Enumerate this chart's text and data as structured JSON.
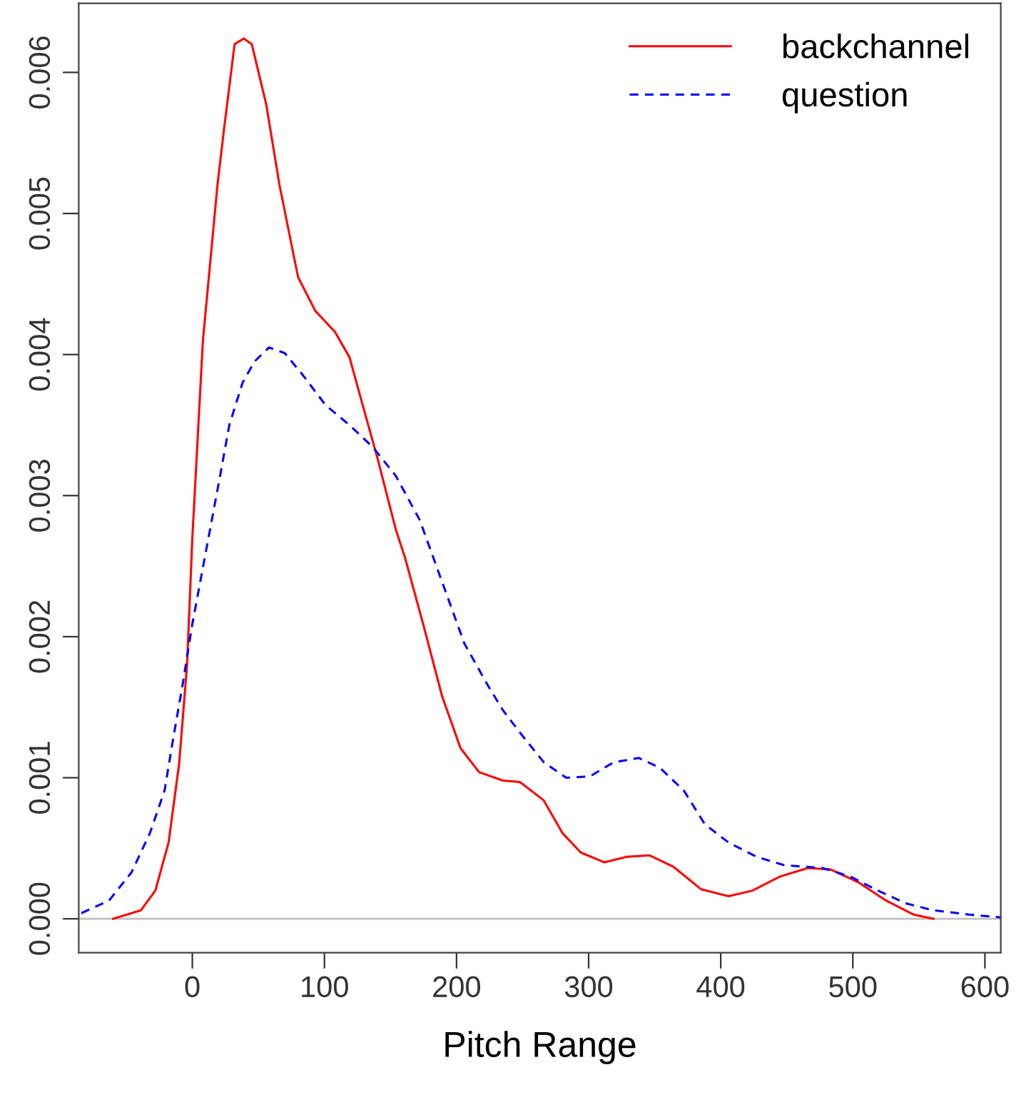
{
  "chart_data": {
    "type": "line",
    "xlabel": "Pitch Range",
    "xlim": [
      -86,
      612
    ],
    "ylim": [
      -0.00024,
      0.00649
    ],
    "xticks": [
      0,
      100,
      200,
      300,
      400,
      500,
      600
    ],
    "yticks": [
      {
        "value": 0,
        "label": "0.000"
      },
      {
        "value": 0.001,
        "label": "0.001"
      },
      {
        "value": 0.002,
        "label": "0.002"
      },
      {
        "value": 0.003,
        "label": "0.003"
      },
      {
        "value": 0.004,
        "label": "0.004"
      },
      {
        "value": 0.005,
        "label": "0.005"
      },
      {
        "value": 0.006,
        "label": "0.006"
      }
    ],
    "grid": false,
    "legend": "top right",
    "ref_lines": [
      {
        "axis": "y",
        "value": 0,
        "color": "#c0c0c0"
      }
    ],
    "series": [
      {
        "name": "backchannel",
        "color": "#ff0000",
        "line_style": "solid",
        "x": [
          -60,
          -39,
          -28,
          -18,
          -10,
          -4,
          0,
          8,
          14,
          19,
          24,
          32,
          39,
          45,
          56,
          66,
          80,
          93,
          108,
          119,
          129,
          140,
          154,
          161,
          175,
          189,
          203,
          217,
          235,
          248,
          266,
          280,
          294,
          312,
          329,
          346,
          364,
          385,
          406,
          424,
          445,
          466,
          483,
          504,
          525,
          546,
          561
        ],
        "values": [
          0,
          6e-05,
          0.0002,
          0.00054,
          0.0011,
          0.0018,
          0.0027,
          0.0041,
          0.0047,
          0.0052,
          0.0056,
          0.0062,
          0.00624,
          0.0062,
          0.00577,
          0.0052,
          0.00455,
          0.00431,
          0.00416,
          0.00398,
          0.00364,
          0.00327,
          0.00276,
          0.00256,
          0.00208,
          0.00158,
          0.00121,
          0.00104,
          0.00098,
          0.00097,
          0.00084,
          0.00061,
          0.00047,
          0.0004,
          0.00044,
          0.00045,
          0.00037,
          0.00021,
          0.00016,
          0.0002,
          0.0003,
          0.00036,
          0.00035,
          0.00026,
          0.00013,
          3e-05,
          0
        ]
      },
      {
        "name": "question",
        "color": "#0000ff",
        "line_style": "dashed",
        "x": [
          -84,
          -63,
          -46,
          -32,
          -21,
          -15,
          -7,
          0,
          10,
          21,
          28,
          38,
          47,
          58,
          70,
          84,
          101,
          119,
          137,
          154,
          172,
          189,
          206,
          224,
          235,
          248,
          266,
          283,
          301,
          319,
          338,
          354,
          372,
          388,
          406,
          427,
          448,
          477,
          498,
          519,
          540,
          561,
          588,
          612
        ],
        "values": [
          4e-05,
          0.00013,
          0.00033,
          0.00061,
          0.00091,
          0.00125,
          0.00168,
          0.00209,
          0.00259,
          0.00314,
          0.0035,
          0.0038,
          0.00395,
          0.00405,
          0.00401,
          0.00385,
          0.00364,
          0.0035,
          0.00334,
          0.00314,
          0.00283,
          0.00239,
          0.00195,
          0.00165,
          0.00148,
          0.00132,
          0.00111,
          0.001,
          0.00101,
          0.00111,
          0.00114,
          0.00107,
          0.00091,
          0.00067,
          0.00054,
          0.00044,
          0.00038,
          0.00036,
          0.0003,
          0.0002,
          0.00011,
          6e-05,
          3e-05,
          1e-05
        ]
      }
    ]
  }
}
